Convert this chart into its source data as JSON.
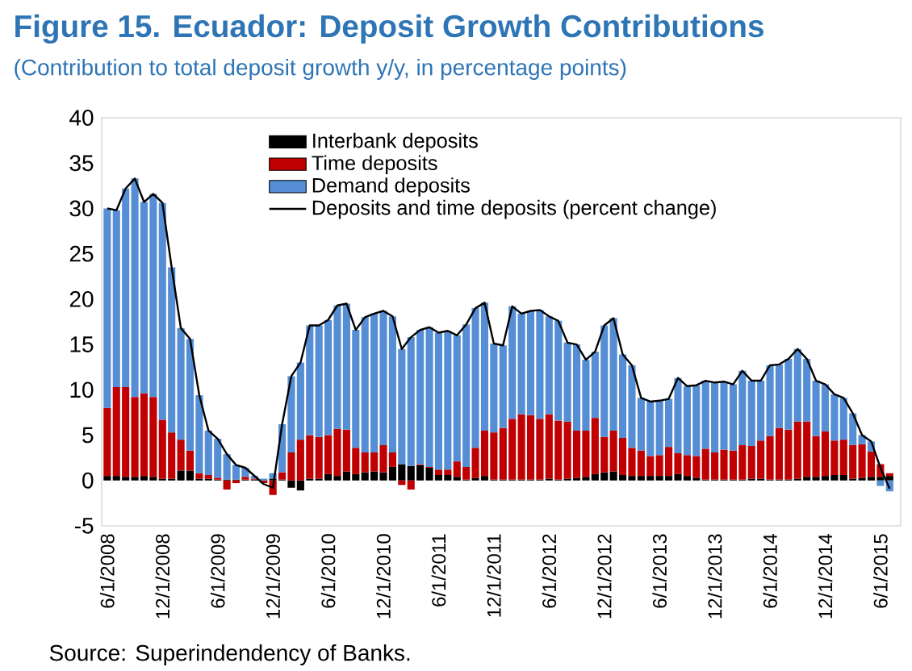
{
  "chart_data": {
    "type": "bar",
    "stacked": true,
    "title": "Figure 15. Ecuador: Deposit Growth Contributions",
    "subtitle": "(Contribution to total deposit growth y/y, in percentage points)",
    "annotations": [
      "Source: Superindendency of Banks."
    ],
    "categories": [
      "6/1/2008",
      null,
      null,
      null,
      null,
      null,
      "12/1/2008",
      null,
      null,
      null,
      null,
      null,
      "6/1/2009",
      null,
      null,
      null,
      null,
      null,
      "12/1/2009",
      null,
      null,
      null,
      null,
      null,
      "6/1/2010",
      null,
      null,
      null,
      null,
      null,
      "12/1/2010",
      null,
      null,
      null,
      null,
      null,
      "6/1/2011",
      null,
      null,
      null,
      null,
      null,
      "12/1/2011",
      null,
      null,
      null,
      null,
      null,
      "6/1/2012",
      null,
      null,
      null,
      null,
      null,
      "12/1/2012",
      null,
      null,
      null,
      null,
      null,
      "6/1/2013",
      null,
      null,
      null,
      null,
      null,
      "12/1/2013",
      null,
      null,
      null,
      null,
      null,
      "6/1/2014",
      null,
      null,
      null,
      null,
      null,
      "12/1/2014",
      null,
      null,
      null,
      null,
      null,
      "6/1/2015",
      null
    ],
    "ylim": [
      -5,
      40
    ],
    "yticks": [
      -5,
      0,
      5,
      10,
      15,
      20,
      25,
      30,
      35,
      40
    ],
    "legend": "top",
    "series": [
      {
        "name": "Interbank deposits",
        "color": "#000000",
        "values": [
          0.5,
          0.5,
          0.4,
          0.4,
          0.5,
          0.4,
          0.2,
          0.2,
          1.1,
          1.1,
          0.2,
          0.2,
          0.1,
          0.1,
          0.1,
          0.1,
          0.1,
          0.0,
          0.2,
          0.1,
          -0.8,
          -1.1,
          0.2,
          0.2,
          0.7,
          0.5,
          1.0,
          0.7,
          0.9,
          1.0,
          0.9,
          1.5,
          1.8,
          1.6,
          1.7,
          1.4,
          0.6,
          0.6,
          0.4,
          0.1,
          0.3,
          0.5,
          0.1,
          0.1,
          0.1,
          0.1,
          0.1,
          0.1,
          0.2,
          0.1,
          0.2,
          0.3,
          0.4,
          0.7,
          0.9,
          1.0,
          0.6,
          0.5,
          0.5,
          0.5,
          0.5,
          0.5,
          0.7,
          0.5,
          0.3,
          0.1,
          0.1,
          0.1,
          0.1,
          0.1,
          0.2,
          0.2,
          0.1,
          0.1,
          0.1,
          0.2,
          0.4,
          0.4,
          0.5,
          0.6,
          0.6,
          0.2,
          0.3,
          0.4,
          0.4,
          0.5
        ]
      },
      {
        "name": "Time deposits",
        "color": "#c00000",
        "values": [
          7.5,
          9.8,
          9.9,
          8.8,
          9.1,
          8.8,
          6.5,
          5.1,
          3.4,
          2.2,
          0.6,
          0.4,
          0.2,
          -1.0,
          -0.3,
          0.3,
          0.1,
          -0.3,
          -1.6,
          0.8,
          3.1,
          4.5,
          4.8,
          4.6,
          4.3,
          5.2,
          4.6,
          2.9,
          2.2,
          2.1,
          3.0,
          1.6,
          -0.5,
          -1.0,
          0.1,
          0.1,
          0.6,
          0.6,
          1.7,
          1.4,
          3.3,
          5.0,
          5.2,
          5.7,
          6.7,
          7.2,
          7.1,
          6.7,
          7.1,
          6.5,
          6.3,
          5.2,
          5.1,
          6.2,
          3.9,
          4.5,
          4.1,
          3.1,
          2.8,
          2.2,
          2.3,
          3.2,
          2.3,
          2.3,
          2.4,
          3.4,
          3.0,
          3.3,
          3.2,
          3.8,
          3.6,
          4.2,
          4.8,
          5.7,
          5.5,
          6.3,
          6.1,
          4.5,
          4.9,
          3.8,
          3.9,
          3.7,
          3.7,
          2.8,
          1.4,
          0.3
        ]
      },
      {
        "name": "Demand deposits",
        "color": "#558ed5",
        "values": [
          22.0,
          19.5,
          21.9,
          24.1,
          21.1,
          22.4,
          23.9,
          18.2,
          12.3,
          12.3,
          8.6,
          4.9,
          4.3,
          2.8,
          1.6,
          1.0,
          0.3,
          0.2,
          0.6,
          5.3,
          8.4,
          8.5,
          12.1,
          12.3,
          12.7,
          13.6,
          13.9,
          13.0,
          14.9,
          15.3,
          14.8,
          15.0,
          12.7,
          14.2,
          14.8,
          15.4,
          15.1,
          15.3,
          13.9,
          15.7,
          15.4,
          14.1,
          9.8,
          9.1,
          12.4,
          11.1,
          11.5,
          12.0,
          10.8,
          11.0,
          8.7,
          9.5,
          7.8,
          7.3,
          12.3,
          12.4,
          9.2,
          9.1,
          5.8,
          6.0,
          6.0,
          5.3,
          8.3,
          7.6,
          7.8,
          7.5,
          7.7,
          7.5,
          7.3,
          8.2,
          7.2,
          6.6,
          7.8,
          7.0,
          7.8,
          8.0,
          6.9,
          6.1,
          5.2,
          5.1,
          4.6,
          3.5,
          1.0,
          1.1,
          -0.6,
          -1.2
        ]
      },
      {
        "name": "Deposits and time deposits (percent change)",
        "color": "#000000",
        "type": "line",
        "values": [
          30.0,
          29.8,
          32.2,
          33.3,
          30.7,
          31.6,
          30.6,
          23.5,
          16.8,
          15.6,
          9.4,
          5.5,
          4.6,
          2.9,
          1.7,
          1.4,
          0.5,
          -0.4,
          -0.8,
          6.2,
          11.5,
          13.0,
          17.1,
          17.1,
          17.7,
          19.3,
          19.5,
          16.6,
          18.0,
          18.4,
          18.7,
          18.1,
          14.5,
          15.8,
          16.6,
          16.9,
          16.3,
          16.5,
          16.0,
          17.2,
          19.0,
          19.6,
          15.1,
          14.9,
          19.2,
          18.4,
          18.7,
          18.8,
          18.1,
          17.6,
          15.2,
          15.0,
          13.3,
          14.2,
          17.1,
          17.9,
          13.9,
          12.7,
          9.1,
          8.7,
          8.8,
          9.0,
          11.3,
          10.4,
          10.5,
          11.0,
          10.8,
          10.9,
          10.6,
          12.1,
          11.0,
          11.0,
          12.7,
          12.8,
          13.4,
          14.5,
          13.4,
          11.0,
          10.6,
          9.5,
          9.1,
          7.4,
          5.0,
          4.3,
          1.4,
          -0.9
        ]
      }
    ]
  }
}
